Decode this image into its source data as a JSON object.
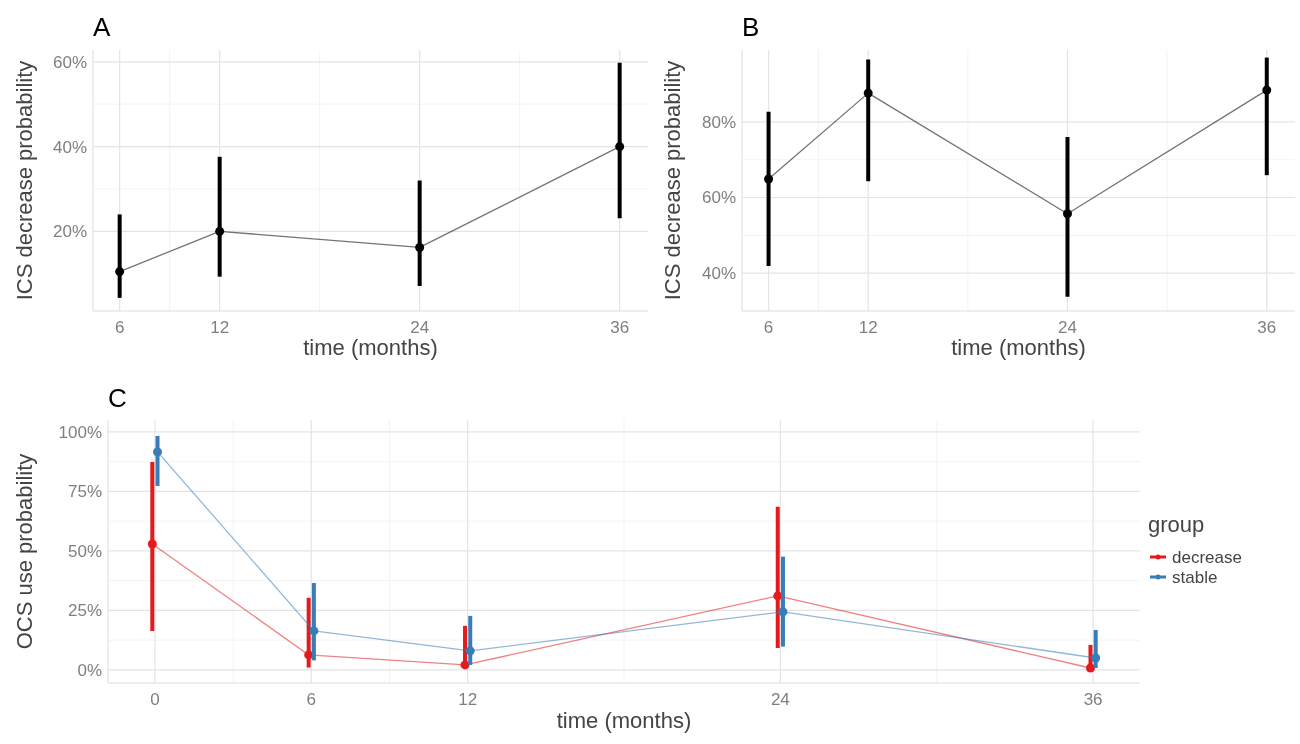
{
  "chart_data": [
    {
      "type": "line",
      "title": "A",
      "xlabel": "time (months)",
      "ylabel": "ICS decrease probability",
      "x": [
        6,
        12,
        24,
        36
      ],
      "xlim": [
        4.4,
        37.7
      ],
      "xticks": [
        6,
        12,
        24,
        36
      ],
      "ylim": [
        1.2,
        62.8
      ],
      "yticks": [
        {
          "value": 20,
          "label": "20%"
        },
        {
          "value": 40,
          "label": "40%"
        },
        {
          "value": 60,
          "label": "60%"
        }
      ],
      "grid": true,
      "marker": "circle",
      "series": [
        {
          "color": "#000000",
          "values": [
            10.5,
            20,
            16.2,
            40
          ],
          "errors": [
            [
              4.3,
              24
            ],
            [
              9.3,
              37.6
            ],
            [
              7.1,
              32
            ],
            [
              23.1,
              59.8
            ]
          ]
        }
      ]
    },
    {
      "type": "line",
      "title": "B",
      "xlabel": "time (months)",
      "ylabel": "ICS decrease probability",
      "x": [
        6,
        12,
        24,
        36
      ],
      "xlim": [
        4.4,
        37.7
      ],
      "xticks": [
        6,
        12,
        24,
        36
      ],
      "ylim": [
        30,
        99
      ],
      "yticks": [
        {
          "value": 40,
          "label": "40%"
        },
        {
          "value": 60,
          "label": "60%"
        },
        {
          "value": 80,
          "label": "80%"
        }
      ],
      "grid": true,
      "marker": "circle",
      "series": [
        {
          "color": "#000000",
          "values": [
            64.9,
            87.6,
            55.7,
            88.4
          ],
          "errors": [
            [
              41.9,
              82.7
            ],
            [
              64.3,
              96.5
            ],
            [
              33.8,
              76
            ],
            [
              65.9,
              97
            ]
          ]
        }
      ]
    },
    {
      "type": "line",
      "title": "C",
      "xlabel": "time (months)",
      "ylabel": "OCS use probability",
      "legend_title": "group",
      "legend": "right",
      "xlim": [
        -1.8,
        37.8
      ],
      "xticks": [
        0,
        6,
        12,
        24,
        36
      ],
      "ylim": [
        -5.5,
        105
      ],
      "yticks": [
        {
          "value": 0,
          "label": "0%"
        },
        {
          "value": 25,
          "label": "25%"
        },
        {
          "value": 50,
          "label": "50%"
        },
        {
          "value": 75,
          "label": "75%"
        },
        {
          "value": 100,
          "label": "100%"
        }
      ],
      "grid": true,
      "marker": "circle",
      "series": [
        {
          "name": "decrease",
          "color": "#e41a1c",
          "x": [
            -0.1,
            5.9,
            11.9,
            23.9,
            35.9
          ],
          "values": [
            52.9,
            6.3,
            2.1,
            31.1,
            0.8
          ],
          "errors": [
            [
              16.4,
              87.4
            ],
            [
              1,
              30.3
            ],
            [
              0.8,
              18.5
            ],
            [
              9.2,
              68.6
            ],
            [
              0,
              10.5
            ]
          ]
        },
        {
          "name": "stable",
          "color": "#377eb8",
          "x": [
            0.1,
            6.1,
            12.1,
            24.1,
            36.1
          ],
          "values": [
            91.6,
            16.4,
            8,
            24.4,
            5
          ],
          "errors": [
            [
              77.3,
              98.3
            ],
            [
              4,
              36.5
            ],
            [
              2.1,
              22.7
            ],
            [
              9.8,
              47.6
            ],
            [
              0.8,
              16.8
            ]
          ]
        }
      ]
    }
  ]
}
